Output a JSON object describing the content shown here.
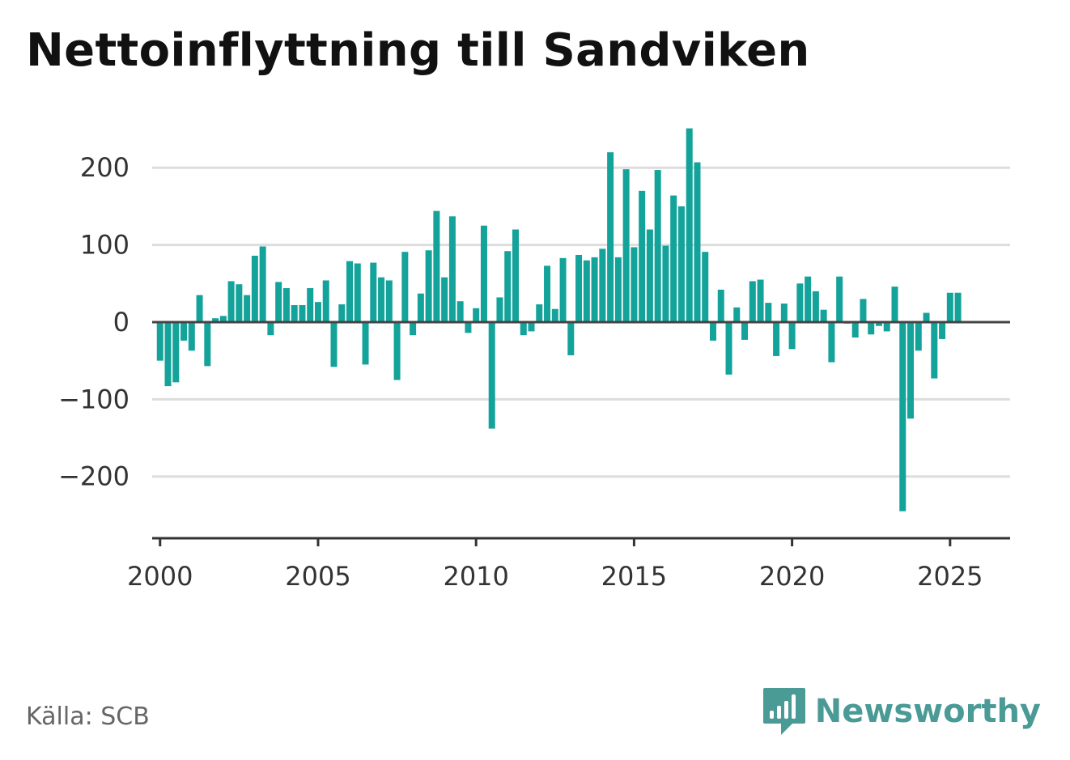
{
  "title": "Nettoinflyttning till Sandviken",
  "source": "Källa: SCB",
  "brand": {
    "name": "Newsworthy",
    "icon": "newsworthy-logo-icon",
    "color": "#4a9a96"
  },
  "colors": {
    "bar": "#14a39a",
    "grid": "#dddddd",
    "zero_line": "#444444",
    "axis": "#333333",
    "tick_text": "#333333"
  },
  "chart_data": {
    "type": "bar",
    "title": "Nettoinflyttning till Sandviken",
    "xlabel": "",
    "ylabel": "",
    "ylim": [
      -280,
      260
    ],
    "xlim": [
      1999.75,
      2026.9
    ],
    "grid": true,
    "y_ticks": [
      200,
      100,
      0,
      -100,
      -200
    ],
    "y_tick_labels": [
      "200",
      "100",
      "0",
      "−100",
      "−200"
    ],
    "x_ticks": [
      2000,
      2005,
      2010,
      2015,
      2020,
      2025
    ],
    "x_tick_labels": [
      "2000",
      "2005",
      "2010",
      "2015",
      "2020",
      "2025"
    ],
    "x": [
      "2000-Q1",
      "2000-Q2",
      "2000-Q3",
      "2000-Q4",
      "2001-Q1",
      "2001-Q2",
      "2001-Q3",
      "2001-Q4",
      "2002-Q1",
      "2002-Q2",
      "2002-Q3",
      "2002-Q4",
      "2003-Q1",
      "2003-Q2",
      "2003-Q3",
      "2003-Q4",
      "2004-Q1",
      "2004-Q2",
      "2004-Q3",
      "2004-Q4",
      "2005-Q1",
      "2005-Q2",
      "2005-Q3",
      "2005-Q4",
      "2006-Q1",
      "2006-Q2",
      "2006-Q3",
      "2006-Q4",
      "2007-Q1",
      "2007-Q2",
      "2007-Q3",
      "2007-Q4",
      "2008-Q1",
      "2008-Q2",
      "2008-Q3",
      "2008-Q4",
      "2009-Q1",
      "2009-Q2",
      "2009-Q3",
      "2009-Q4",
      "2010-Q1",
      "2010-Q2",
      "2010-Q3",
      "2010-Q4",
      "2011-Q1",
      "2011-Q2",
      "2011-Q3",
      "2011-Q4",
      "2012-Q1",
      "2012-Q2",
      "2012-Q3",
      "2012-Q4",
      "2013-Q1",
      "2013-Q2",
      "2013-Q3",
      "2013-Q4",
      "2014-Q1",
      "2014-Q2",
      "2014-Q3",
      "2014-Q4",
      "2015-Q1",
      "2015-Q2",
      "2015-Q3",
      "2015-Q4",
      "2016-Q1",
      "2016-Q2",
      "2016-Q3",
      "2016-Q4",
      "2017-Q1",
      "2017-Q2",
      "2017-Q3",
      "2017-Q4",
      "2018-Q1",
      "2018-Q2",
      "2018-Q3",
      "2018-Q4",
      "2019-Q1",
      "2019-Q2",
      "2019-Q3",
      "2019-Q4",
      "2020-Q1",
      "2020-Q2",
      "2020-Q3",
      "2020-Q4",
      "2021-Q1",
      "2021-Q2",
      "2021-Q3",
      "2021-Q4",
      "2022-Q1",
      "2022-Q2",
      "2022-Q3",
      "2022-Q4",
      "2023-Q1",
      "2023-Q2",
      "2023-Q3",
      "2023-Q4",
      "2024-Q1",
      "2024-Q2",
      "2024-Q3",
      "2024-Q4",
      "2025-Q1",
      "2025-Q2"
    ],
    "values": [
      -50,
      -83,
      -78,
      -24,
      -37,
      35,
      -57,
      5,
      8,
      53,
      49,
      35,
      86,
      98,
      -17,
      52,
      44,
      22,
      22,
      44,
      26,
      54,
      -58,
      23,
      79,
      76,
      -55,
      77,
      58,
      54,
      -75,
      91,
      -17,
      37,
      93,
      144,
      58,
      137,
      27,
      -14,
      18,
      125,
      -138,
      32,
      92,
      120,
      -17,
      -12,
      23,
      73,
      17,
      83,
      -43,
      87,
      80,
      84,
      95,
      220,
      84,
      198,
      97,
      170,
      120,
      197,
      99,
      164,
      150,
      251,
      207,
      91,
      -24,
      42,
      -68,
      19,
      -23,
      53,
      55,
      25,
      -44,
      24,
      -35,
      50,
      59,
      40,
      16,
      -52,
      59,
      -2,
      -20,
      30,
      -16,
      -5,
      -12,
      46,
      -245,
      -125,
      -37,
      12,
      -73,
      -22,
      38,
      38
    ]
  }
}
